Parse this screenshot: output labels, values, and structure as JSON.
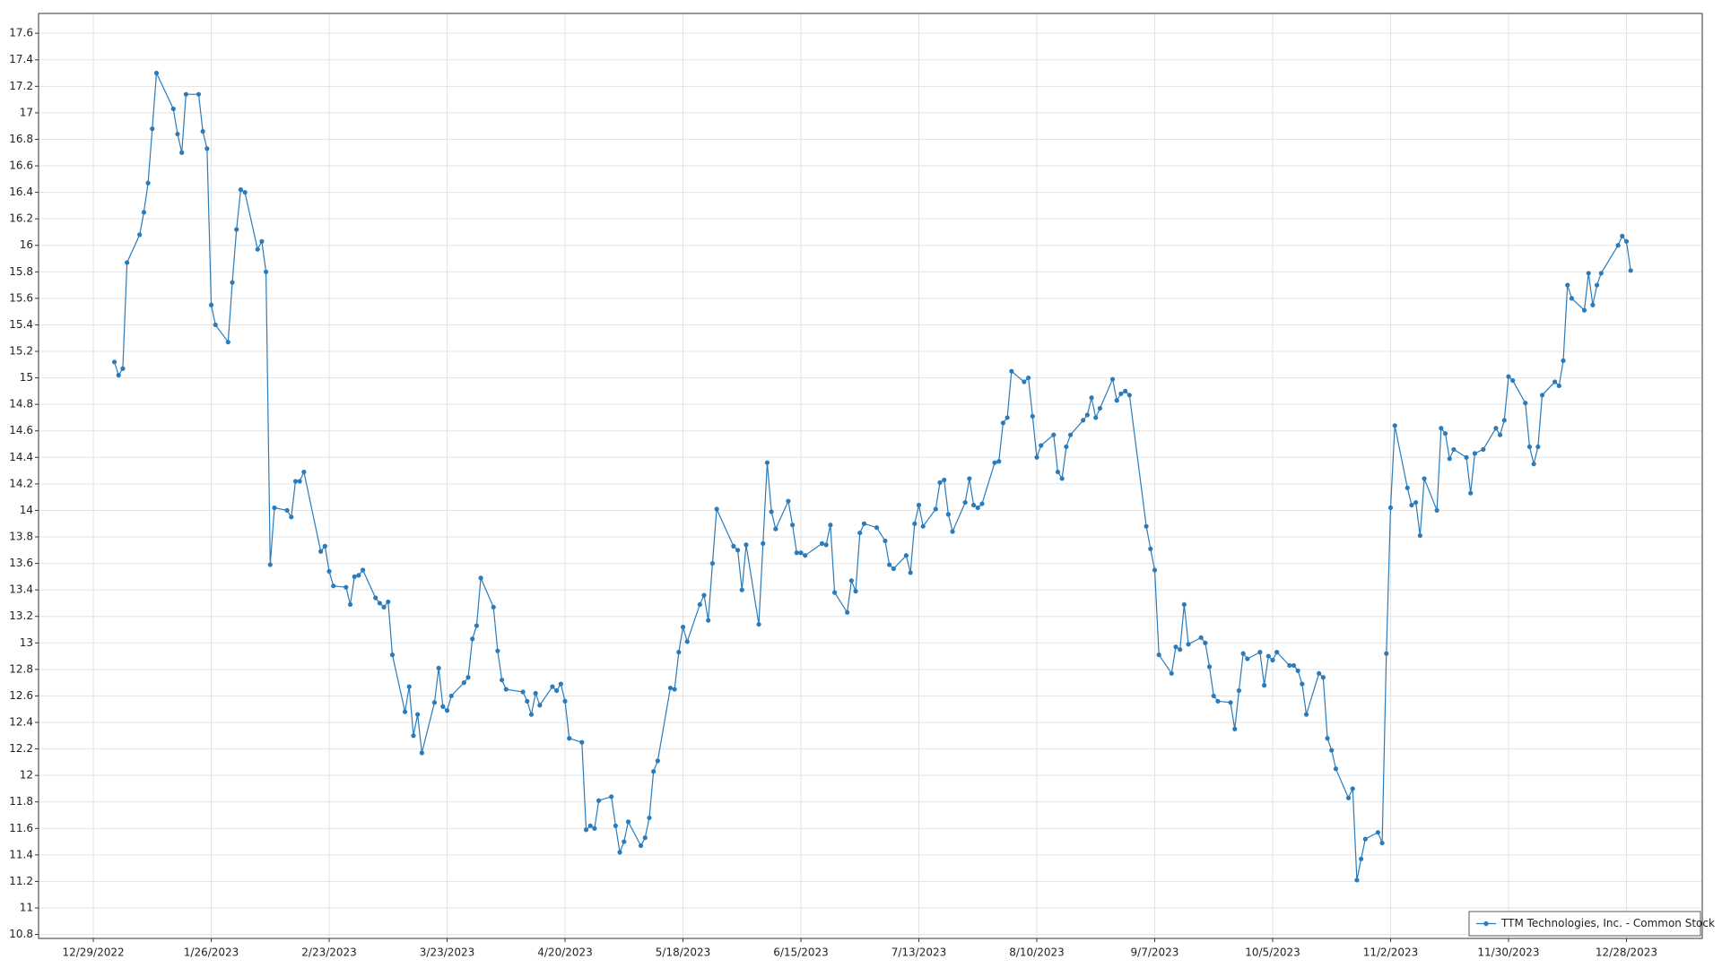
{
  "chart_data": {
    "type": "line",
    "x": [
      "2023-01-03",
      "2023-01-04",
      "2023-01-05",
      "2023-01-06",
      "2023-01-09",
      "2023-01-10",
      "2023-01-11",
      "2023-01-12",
      "2023-01-13",
      "2023-01-17",
      "2023-01-18",
      "2023-01-19",
      "2023-01-20",
      "2023-01-23",
      "2023-01-24",
      "2023-01-25",
      "2023-01-26",
      "2023-01-27",
      "2023-01-30",
      "2023-01-31",
      "2023-02-01",
      "2023-02-02",
      "2023-02-03",
      "2023-02-06",
      "2023-02-07",
      "2023-02-08",
      "2023-02-09",
      "2023-02-10",
      "2023-02-13",
      "2023-02-14",
      "2023-02-15",
      "2023-02-16",
      "2023-02-17",
      "2023-02-21",
      "2023-02-22",
      "2023-02-23",
      "2023-02-24",
      "2023-02-27",
      "2023-02-28",
      "2023-03-01",
      "2023-03-02",
      "2023-03-03",
      "2023-03-06",
      "2023-03-07",
      "2023-03-08",
      "2023-03-09",
      "2023-03-10",
      "2023-03-13",
      "2023-03-14",
      "2023-03-15",
      "2023-03-16",
      "2023-03-17",
      "2023-03-20",
      "2023-03-21",
      "2023-03-22",
      "2023-03-23",
      "2023-03-24",
      "2023-03-27",
      "2023-03-28",
      "2023-03-29",
      "2023-03-30",
      "2023-03-31",
      "2023-04-03",
      "2023-04-04",
      "2023-04-05",
      "2023-04-06",
      "2023-04-10",
      "2023-04-11",
      "2023-04-12",
      "2023-04-13",
      "2023-04-14",
      "2023-04-17",
      "2023-04-18",
      "2023-04-19",
      "2023-04-20",
      "2023-04-21",
      "2023-04-24",
      "2023-04-25",
      "2023-04-26",
      "2023-04-27",
      "2023-04-28",
      "2023-05-01",
      "2023-05-02",
      "2023-05-03",
      "2023-05-04",
      "2023-05-05",
      "2023-05-08",
      "2023-05-09",
      "2023-05-10",
      "2023-05-11",
      "2023-05-12",
      "2023-05-15",
      "2023-05-16",
      "2023-05-17",
      "2023-05-18",
      "2023-05-19",
      "2023-05-22",
      "2023-05-23",
      "2023-05-24",
      "2023-05-25",
      "2023-05-26",
      "2023-05-30",
      "2023-05-31",
      "2023-06-01",
      "2023-06-02",
      "2023-06-05",
      "2023-06-06",
      "2023-06-07",
      "2023-06-08",
      "2023-06-09",
      "2023-06-12",
      "2023-06-13",
      "2023-06-14",
      "2023-06-15",
      "2023-06-16",
      "2023-06-20",
      "2023-06-21",
      "2023-06-22",
      "2023-06-23",
      "2023-06-26",
      "2023-06-27",
      "2023-06-28",
      "2023-06-29",
      "2023-06-30",
      "2023-07-03",
      "2023-07-05",
      "2023-07-06",
      "2023-07-07",
      "2023-07-10",
      "2023-07-11",
      "2023-07-12",
      "2023-07-13",
      "2023-07-14",
      "2023-07-17",
      "2023-07-18",
      "2023-07-19",
      "2023-07-20",
      "2023-07-21",
      "2023-07-24",
      "2023-07-25",
      "2023-07-26",
      "2023-07-27",
      "2023-07-28",
      "2023-07-31",
      "2023-08-01",
      "2023-08-02",
      "2023-08-03",
      "2023-08-04",
      "2023-08-07",
      "2023-08-08",
      "2023-08-09",
      "2023-08-10",
      "2023-08-11",
      "2023-08-14",
      "2023-08-15",
      "2023-08-16",
      "2023-08-17",
      "2023-08-18",
      "2023-08-21",
      "2023-08-22",
      "2023-08-23",
      "2023-08-24",
      "2023-08-25",
      "2023-08-28",
      "2023-08-29",
      "2023-08-30",
      "2023-08-31",
      "2023-09-01",
      "2023-09-05",
      "2023-09-06",
      "2023-09-07",
      "2023-09-08",
      "2023-09-11",
      "2023-09-12",
      "2023-09-13",
      "2023-09-14",
      "2023-09-15",
      "2023-09-18",
      "2023-09-19",
      "2023-09-20",
      "2023-09-21",
      "2023-09-22",
      "2023-09-25",
      "2023-09-26",
      "2023-09-27",
      "2023-09-28",
      "2023-09-29",
      "2023-10-02",
      "2023-10-03",
      "2023-10-04",
      "2023-10-05",
      "2023-10-06",
      "2023-10-09",
      "2023-10-10",
      "2023-10-11",
      "2023-10-12",
      "2023-10-13",
      "2023-10-16",
      "2023-10-17",
      "2023-10-18",
      "2023-10-19",
      "2023-10-20",
      "2023-10-23",
      "2023-10-24",
      "2023-10-25",
      "2023-10-26",
      "2023-10-27",
      "2023-10-30",
      "2023-10-31",
      "2023-11-01",
      "2023-11-02",
      "2023-11-03",
      "2023-11-06",
      "2023-11-07",
      "2023-11-08",
      "2023-11-09",
      "2023-11-10",
      "2023-11-13",
      "2023-11-14",
      "2023-11-15",
      "2023-11-16",
      "2023-11-17",
      "2023-11-20",
      "2023-11-21",
      "2023-11-22",
      "2023-11-24",
      "2023-11-27",
      "2023-11-28",
      "2023-11-29",
      "2023-11-30",
      "2023-12-01",
      "2023-12-04",
      "2023-12-05",
      "2023-12-06",
      "2023-12-07",
      "2023-12-08",
      "2023-12-11",
      "2023-12-12",
      "2023-12-13",
      "2023-12-14",
      "2023-12-15",
      "2023-12-18",
      "2023-12-19",
      "2023-12-20",
      "2023-12-21",
      "2023-12-22",
      "2023-12-26",
      "2023-12-27",
      "2023-12-28",
      "2023-12-29"
    ],
    "series": [
      {
        "name": "TTM Technologies, Inc. - Common Stock",
        "color": "#2b7bba",
        "values": [
          15.12,
          15.02,
          15.07,
          15.87,
          16.08,
          16.25,
          16.47,
          16.88,
          17.3,
          17.03,
          16.84,
          16.7,
          17.14,
          17.14,
          16.86,
          16.73,
          15.55,
          15.4,
          15.27,
          15.72,
          16.12,
          16.42,
          16.4,
          15.97,
          16.03,
          15.8,
          13.59,
          14.02,
          14.0,
          13.95,
          14.22,
          14.22,
          14.29,
          13.69,
          13.73,
          13.54,
          13.43,
          13.42,
          13.29,
          13.5,
          13.51,
          13.55,
          13.34,
          13.3,
          13.27,
          13.31,
          12.91,
          12.48,
          12.67,
          12.3,
          12.46,
          12.17,
          12.55,
          12.81,
          12.52,
          12.49,
          12.6,
          12.7,
          12.74,
          13.03,
          13.13,
          13.49,
          13.27,
          12.94,
          12.72,
          12.65,
          12.63,
          12.56,
          12.46,
          12.62,
          12.53,
          12.67,
          12.64,
          12.69,
          12.56,
          12.28,
          12.25,
          11.59,
          11.62,
          11.6,
          11.81,
          11.84,
          11.62,
          11.42,
          11.5,
          11.65,
          11.47,
          11.53,
          11.68,
          12.03,
          12.11,
          12.66,
          12.65,
          12.93,
          13.12,
          13.01,
          13.29,
          13.36,
          13.17,
          13.6,
          14.01,
          13.73,
          13.7,
          13.4,
          13.74,
          13.14,
          13.75,
          14.36,
          13.99,
          13.86,
          14.07,
          13.89,
          13.68,
          13.68,
          13.66,
          13.75,
          13.74,
          13.89,
          13.38,
          13.23,
          13.47,
          13.39,
          13.83,
          13.9,
          13.87,
          13.77,
          13.59,
          13.56,
          13.66,
          13.53,
          13.9,
          14.04,
          13.88,
          14.01,
          14.21,
          14.23,
          13.97,
          13.84,
          14.06,
          14.24,
          14.04,
          14.02,
          14.05,
          14.36,
          14.37,
          14.66,
          14.7,
          15.05,
          14.97,
          15.0,
          14.71,
          14.4,
          14.49,
          14.57,
          14.29,
          14.24,
          14.48,
          14.57,
          14.68,
          14.72,
          14.85,
          14.7,
          14.77,
          14.99,
          14.83,
          14.88,
          14.9,
          14.87,
          13.88,
          13.71,
          13.55,
          12.91,
          12.77,
          12.97,
          12.95,
          13.29,
          12.99,
          13.04,
          13.0,
          12.82,
          12.6,
          12.56,
          12.55,
          12.35,
          12.64,
          12.92,
          12.88,
          12.93,
          12.68,
          12.9,
          12.87,
          12.93,
          12.83,
          12.83,
          12.79,
          12.69,
          12.46,
          12.77,
          12.74,
          12.28,
          12.19,
          12.05,
          11.83,
          11.9,
          11.21,
          11.37,
          11.52,
          11.57,
          11.49,
          12.92,
          14.02,
          14.64,
          14.17,
          14.04,
          14.06,
          13.81,
          14.24,
          14.0,
          14.62,
          14.58,
          14.39,
          14.46,
          14.4,
          14.13,
          14.43,
          14.46,
          14.62,
          14.57,
          14.68,
          15.01,
          14.98,
          14.81,
          14.48,
          14.35,
          14.48,
          14.87,
          14.97,
          14.94,
          15.13,
          15.7,
          15.6,
          15.51,
          15.79,
          15.55,
          15.7,
          15.79,
          16.0,
          16.07,
          16.03,
          15.81
        ]
      }
    ],
    "xlim": [
      "2022-12-16",
      "2024-01-15"
    ],
    "xticks": [
      {
        "value": "2022-12-29",
        "label": "12/29/2022"
      },
      {
        "value": "2023-01-26",
        "label": "1/26/2023"
      },
      {
        "value": "2023-02-23",
        "label": "2/23/2023"
      },
      {
        "value": "2023-03-23",
        "label": "3/23/2023"
      },
      {
        "value": "2023-04-20",
        "label": "4/20/2023"
      },
      {
        "value": "2023-05-18",
        "label": "5/18/2023"
      },
      {
        "value": "2023-06-15",
        "label": "6/15/2023"
      },
      {
        "value": "2023-07-13",
        "label": "7/13/2023"
      },
      {
        "value": "2023-08-10",
        "label": "8/10/2023"
      },
      {
        "value": "2023-09-07",
        "label": "9/7/2023"
      },
      {
        "value": "2023-10-05",
        "label": "10/5/2023"
      },
      {
        "value": "2023-11-02",
        "label": "11/2/2023"
      },
      {
        "value": "2023-11-30",
        "label": "11/30/2023"
      },
      {
        "value": "2023-12-28",
        "label": "12/28/2023"
      }
    ],
    "ylim": [
      10.77,
      17.75
    ],
    "yticks": [
      10.8,
      11,
      11.2,
      11.4,
      11.6,
      11.8,
      12,
      12.2,
      12.4,
      12.6,
      12.8,
      13,
      13.2,
      13.4,
      13.6,
      13.8,
      14,
      14.2,
      14.4,
      14.6,
      14.8,
      15,
      15.2,
      15.4,
      15.6,
      15.8,
      16,
      16.2,
      16.4,
      16.6,
      16.8,
      17,
      17.2,
      17.4,
      17.6
    ],
    "grid": true,
    "legend": "lower right"
  }
}
